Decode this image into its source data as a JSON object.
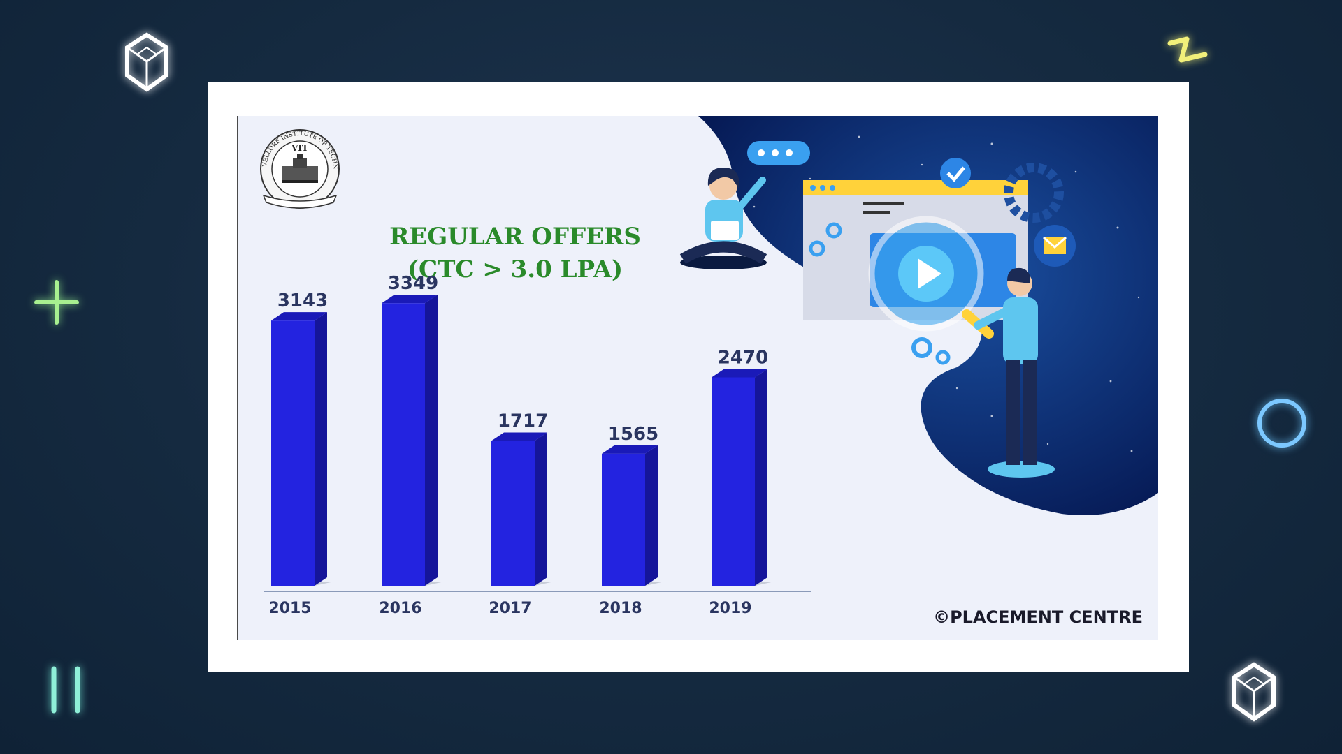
{
  "logo": {
    "text": "VIT",
    "ring_text": "VELLORE INSTITUTE OF TECHNOLOGY"
  },
  "chart_data": {
    "type": "bar",
    "title": "REGULAR OFFERS",
    "subtitle": "(CTC > 3.0 LPA)",
    "categories": [
      "2015",
      "2016",
      "2017",
      "2018",
      "2019"
    ],
    "values": [
      3143,
      3349,
      1717,
      1565,
      2470
    ],
    "value_labels": [
      "3143",
      "3349",
      "1717",
      "1565",
      "2470"
    ],
    "xlabel": "",
    "ylabel": "",
    "ylim": [
      0,
      3500
    ],
    "grid": false,
    "legend": "none",
    "bar_color": "#2323e0",
    "title_color": "#2a8a2a"
  },
  "credit": "©PLACEMENT CENTRE",
  "colors": {
    "background": "#152a40",
    "card": "#ffffff",
    "slide": "#eef1fa",
    "illustration_blob": "#0a2a6a"
  }
}
